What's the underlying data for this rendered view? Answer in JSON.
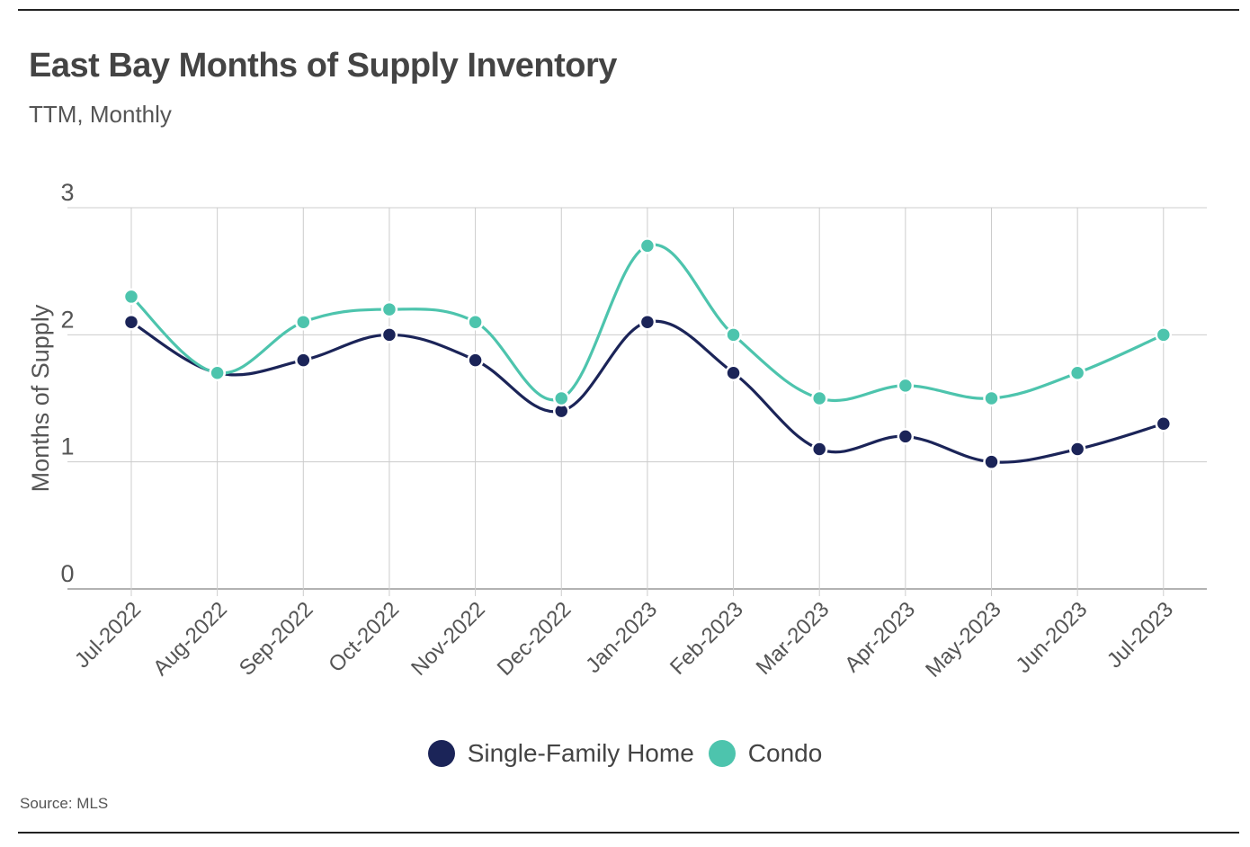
{
  "header": {
    "title": "East Bay Months of Supply Inventory",
    "subtitle": "TTM, Monthly"
  },
  "footer": {
    "source": "Source:  MLS"
  },
  "colors": {
    "sfh": "#1b2458",
    "condo": "#4dc4ad",
    "grid": "#cccccc",
    "axis": "#999999",
    "text": "#444444"
  },
  "chart_data": {
    "type": "line",
    "title": "East Bay Months of Supply Inventory",
    "subtitle": "TTM, Monthly",
    "xlabel": "",
    "ylabel": "Months of Supply",
    "ylim": [
      0,
      3
    ],
    "yticks": [
      0,
      1,
      2,
      3
    ],
    "grid": true,
    "legend_position": "bottom-center",
    "categories": [
      "Jul-2022",
      "Aug-2022",
      "Sep-2022",
      "Oct-2022",
      "Nov-2022",
      "Dec-2022",
      "Jan-2023",
      "Feb-2023",
      "Mar-2023",
      "Apr-2023",
      "May-2023",
      "Jun-2023",
      "Jul-2023"
    ],
    "series": [
      {
        "name": "Single-Family Home",
        "color": "#1b2458",
        "values": [
          2.1,
          1.7,
          1.8,
          2.0,
          1.8,
          1.4,
          2.1,
          1.7,
          1.1,
          1.2,
          1.0,
          1.1,
          1.3
        ]
      },
      {
        "name": "Condo",
        "color": "#4dc4ad",
        "values": [
          2.3,
          1.7,
          2.1,
          2.2,
          2.1,
          1.5,
          2.7,
          2.0,
          1.5,
          1.6,
          1.5,
          1.7,
          2.0
        ]
      }
    ]
  }
}
